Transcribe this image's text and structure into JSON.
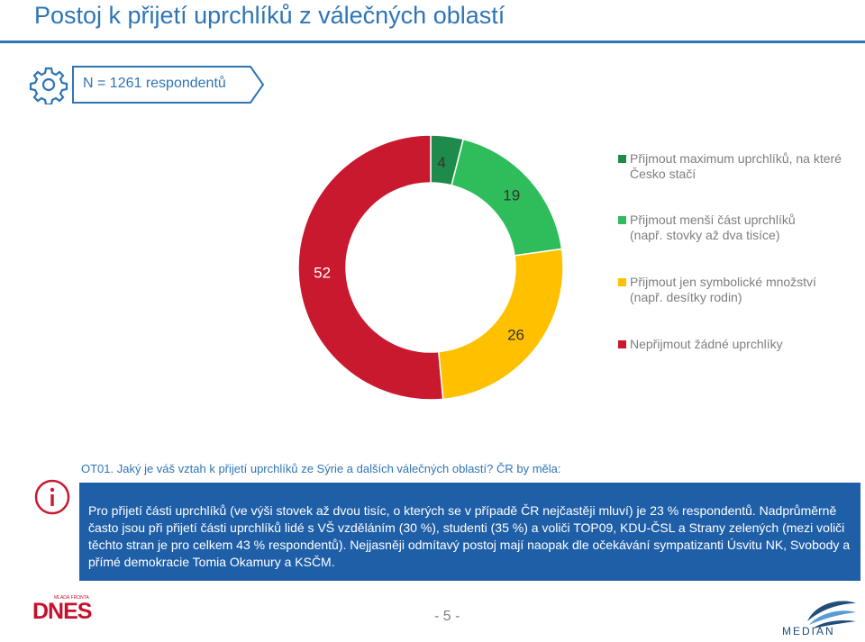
{
  "header": {
    "title": "Postoj k přijetí uprchlíků z válečných oblastí",
    "sample": "N = 1261 respondentů"
  },
  "chart_data": {
    "type": "pie",
    "variant": "donut",
    "unit": "%",
    "categories": [
      "Přijmout maximum uprchlíků, na které Česko stačí",
      "Přijmout menší část uprchlíků (např. stovky až dva tisíce)",
      "Přijmout jen symbolické množství (např. desítky rodin)",
      "Nepřijmout žádné uprchlíky"
    ],
    "values": [
      4,
      19,
      26,
      52
    ],
    "colors": [
      "#1e8b4c",
      "#2fbd5c",
      "#ffc000",
      "#c9192f"
    ],
    "legend_position": "right"
  },
  "legend": [
    {
      "line1": "Přijmout maximum uprchlíků, na které",
      "line2": "Česko stačí",
      "color": "#1e8b4c"
    },
    {
      "line1": "Přijmout menší část uprchlíků",
      "line2": "(např. stovky až dva tisíce)",
      "color": "#2fbd5c"
    },
    {
      "line1": "Přijmout jen symbolické množství",
      "line2": "(např. desítky rodin)",
      "color": "#ffc000"
    },
    {
      "line1": "Nepřijmout žádné uprchlíky",
      "line2": "",
      "color": "#c9192f"
    }
  ],
  "question": "OT01. Jaký je váš vztah k přijetí uprchlíků ze Sýrie a dalších válečných oblastí? ČR by měla:",
  "info": "Pro přijetí části uprchlíků (ve výši stovek až dvou tisíc, o kterých se v případě ČR nejčastěji mluví) je 23 % respondentů. Nadprůměrně často jsou při přijetí části uprchlíků lidé s VŠ vzděláním (30 %), studenti (35 %) a voliči TOP09, KDU-ČSL a Strany zelených (mezi voliči těchto stran je pro celkem 43 % respondentů). Nejjasněji odmítavý postoj mají naopak dle očekávání sympatizanti Úsvitu NK, Svobody a přímé demokracie Tomia Okamury a KSČM.",
  "footer": {
    "page": "- 5 -",
    "brand_left": "DNES",
    "brand_left_small": "MLADÁ FRONTA",
    "brand_right": "MEDIAN"
  },
  "icons": [
    "gear-icon",
    "info-icon"
  ],
  "colors": {
    "accent": "#2e75b6",
    "info_bg": "#1f5fa8"
  }
}
